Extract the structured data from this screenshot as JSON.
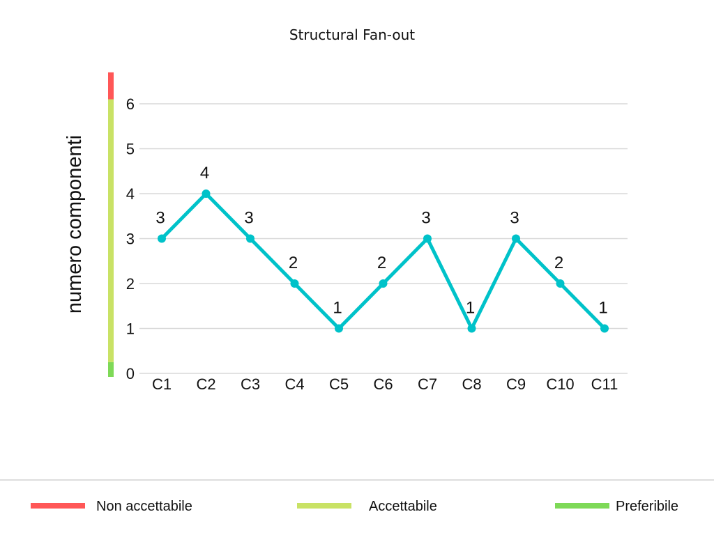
{
  "chart_data": {
    "type": "line",
    "title": "Structural Fan-out",
    "ylabel": "numero componenti",
    "xlabel": "",
    "categories": [
      "C1",
      "C2",
      "C3",
      "C4",
      "C5",
      "C6",
      "C7",
      "C8",
      "C9",
      "C10",
      "C11"
    ],
    "values": [
      3,
      4,
      3,
      2,
      1,
      2,
      3,
      1,
      3,
      2,
      1
    ],
    "ylim": [
      0,
      6
    ],
    "yticks": [
      0,
      1,
      2,
      3,
      4,
      5,
      6
    ],
    "grid": true,
    "line_color": "#00c2c9",
    "threshold_bar": [
      {
        "level": "Preferibile",
        "from": 0,
        "to": 0.25,
        "color": "#7ed957"
      },
      {
        "level": "Accettabile",
        "from": 0.25,
        "to": 6.1,
        "color": "#c9e265"
      },
      {
        "level": "Non accettabile",
        "from": 6.1,
        "to": 6.7,
        "color": "#ff5757"
      }
    ],
    "legend": {
      "placement": "bottom",
      "items": [
        {
          "label": "Non accettabile",
          "color": "#ff5757"
        },
        {
          "label": "Accettabile",
          "color": "#c9e265"
        },
        {
          "label": "Preferibile",
          "color": "#7ed957"
        }
      ]
    }
  }
}
